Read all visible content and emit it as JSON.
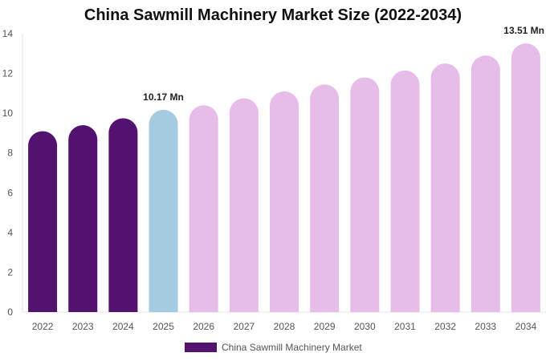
{
  "chart_data": {
    "type": "bar",
    "title": "China Sawmill Machinery Market Size (2022-2034)",
    "categories": [
      "2022",
      "2023",
      "2024",
      "2025",
      "2026",
      "2027",
      "2028",
      "2029",
      "2030",
      "2031",
      "2032",
      "2033",
      "2034"
    ],
    "series": [
      {
        "name": "China Sawmill Machinery Market",
        "values": [
          9.1,
          9.4,
          9.75,
          10.17,
          10.4,
          10.75,
          11.1,
          11.45,
          11.8,
          12.15,
          12.5,
          12.9,
          13.51
        ]
      }
    ],
    "data_labels": [
      {
        "category": "2025",
        "text": "10.17 Mn"
      },
      {
        "category": "2034",
        "text": "13.51 Mn"
      }
    ],
    "y_ticks": [
      "0",
      "2",
      "4",
      "6",
      "8",
      "10",
      "12",
      "14"
    ],
    "ylim": [
      0,
      14
    ],
    "grid": false,
    "legend_position": "bottom",
    "colors": {
      "historical": "#531270",
      "current": "#a4cbdf",
      "forecast": "#e6bde9"
    },
    "bar_color_group": [
      "historical",
      "historical",
      "historical",
      "current",
      "forecast",
      "forecast",
      "forecast",
      "forecast",
      "forecast",
      "forecast",
      "forecast",
      "forecast",
      "forecast"
    ]
  }
}
